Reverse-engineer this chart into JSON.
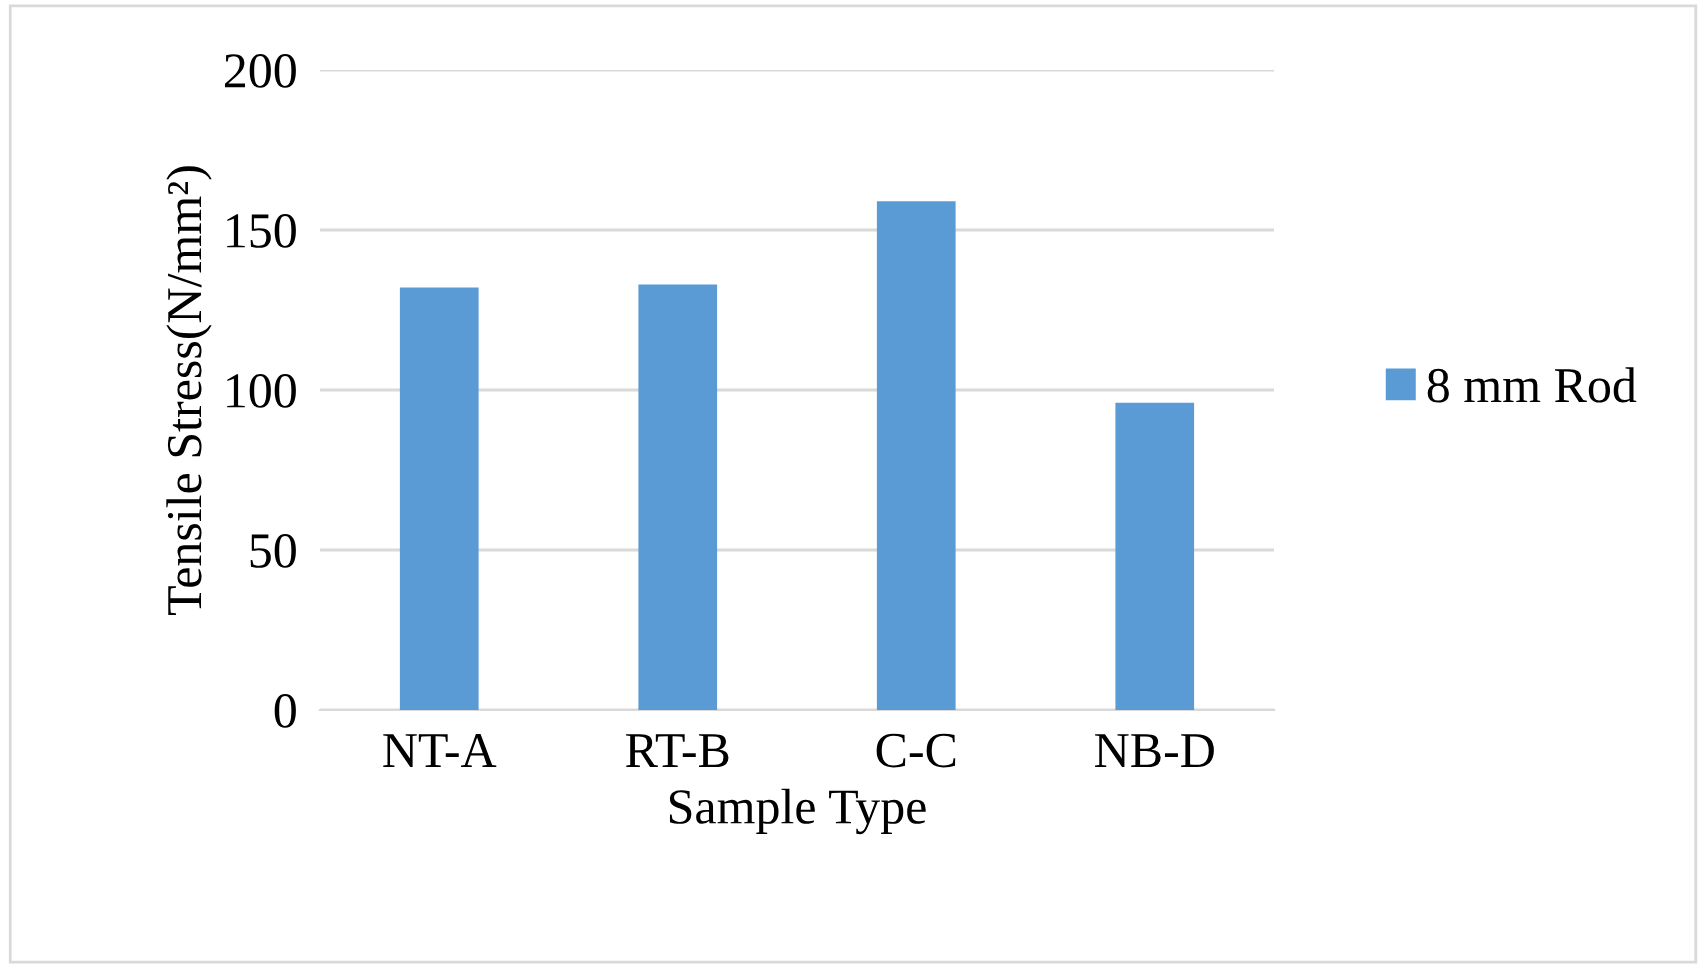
{
  "chart_data": {
    "type": "bar",
    "xlabel": "Sample Type",
    "ylabel": "Tensile Stress(N/mm²)",
    "categories": [
      "NT-A",
      "RT-B",
      "C-C",
      "NB-D"
    ],
    "series": [
      {
        "name": "8 mm Rod",
        "color": "#5b9bd5",
        "values": [
          132,
          133,
          159,
          96
        ]
      }
    ],
    "ylim": [
      0,
      200
    ],
    "yticks": [
      0,
      50,
      100,
      150,
      200
    ],
    "grid": "y",
    "legend": "right"
  }
}
